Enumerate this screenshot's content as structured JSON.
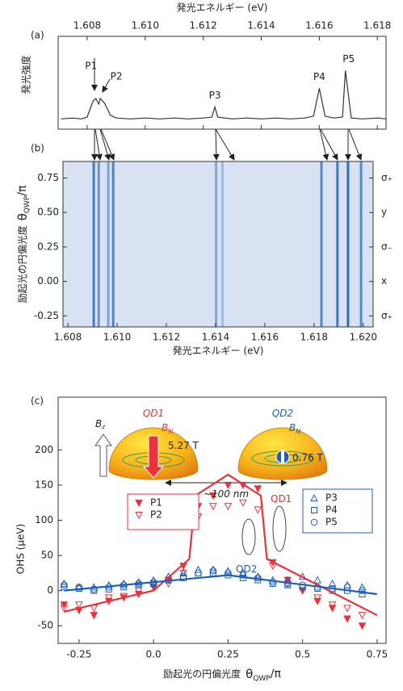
{
  "chart_data": [
    {
      "type": "line",
      "label": "(a)",
      "xlabel": "発光エネルギー (eV)",
      "ylabel": "発光強度",
      "xlim": [
        1.607,
        1.6183
      ],
      "xticks": [
        1.608,
        {
          "value": 1.61,
          "label": "1.610"
        },
        1.612,
        1.614,
        1.616,
        1.618
      ],
      "ylim": [
        0,
        100
      ],
      "x": [
        1.6071,
        1.6075,
        1.6078,
        1.608,
        1.6082,
        1.6083,
        1.6084,
        1.60845,
        1.6086,
        1.6088,
        1.609,
        1.6095,
        1.61,
        1.6105,
        1.611,
        1.6115,
        1.612,
        1.6123,
        1.6124,
        1.6125,
        1.613,
        1.6135,
        1.614,
        1.6145,
        1.615,
        1.6155,
        1.6158,
        1.616,
        1.6162,
        1.6165,
        1.6168,
        1.6169,
        1.6171,
        1.6175,
        1.618,
        1.6183
      ],
      "series": [
        {
          "color": "#333333",
          "values": [
            11,
            12,
            11,
            13,
            30,
            33,
            27,
            33,
            28,
            15,
            12,
            11,
            12,
            11,
            12,
            11,
            12,
            13,
            24,
            13,
            11,
            12,
            11,
            12,
            11,
            12,
            14,
            44,
            14,
            12,
            13,
            63,
            12,
            11,
            12,
            11
          ]
        }
      ],
      "peaks": [
        {
          "label": "P1",
          "x": 1.6083
        },
        {
          "label": "P2",
          "x": 1.60845
        },
        {
          "label": "P3",
          "x": 1.6124
        },
        {
          "label": "P4",
          "x": 1.616
        },
        {
          "label": "P5",
          "x": 1.6169
        }
      ]
    },
    {
      "type": "heatmap",
      "label": "(b)",
      "xlabel": "発光エネルギー (eV)",
      "ylabel": "励起光の円偏光度",
      "ylabel_symbol": {
        "base": "θ",
        "sub": "QWP",
        "tail": "/π"
      },
      "xlim": [
        1.6078,
        1.6204
      ],
      "xticks": [
        1.608,
        {
          "value": 1.61,
          "label": "1.610"
        },
        1.612,
        1.614,
        1.616,
        1.618,
        {
          "value": 1.62,
          "label": "1.620"
        }
      ],
      "ylim": [
        -0.33,
        0.87
      ],
      "yticks": [
        0.75,
        {
          "value": 0.5,
          "label": "0.50"
        },
        0.25,
        {
          "value": 0,
          "label": "0.00"
        },
        -0.25
      ],
      "y2ticks": [
        {
          "value": 0.75,
          "label": "σ₊"
        },
        {
          "value": 0.5,
          "label": "y"
        },
        {
          "value": 0.25,
          "label": "σ₋"
        },
        {
          "value": 0,
          "label": "x"
        },
        {
          "value": -0.25,
          "label": "σ₊"
        }
      ],
      "color": "#1f5fb5",
      "x": [
        1.60905,
        1.60925,
        1.60964,
        1.60984,
        1.61402,
        1.61428,
        1.6183,
        1.61895,
        1.61938,
        1.61991
      ],
      "values": [
        0.8,
        0.6,
        0.5,
        0.75,
        0.45,
        0.3,
        0.7,
        0.8,
        0.9,
        0.7
      ]
    },
    {
      "type": "scatter",
      "label": "(c)",
      "ylabel": "OHS (μeV)",
      "xlabel": "励起光の円偏光度",
      "xlabel_symbol": {
        "base": "θ",
        "sub": "QWP",
        "tail": "/π"
      },
      "xlim": [
        -0.32,
        0.78
      ],
      "xticks": [
        -0.25,
        {
          "value": 0,
          "label": "0.0"
        },
        0.25,
        0.5,
        0.75
      ],
      "ylim": [
        -75,
        275
      ],
      "yticks": [
        -50,
        0,
        50,
        100,
        150,
        200
      ],
      "x": [
        -0.3,
        -0.25,
        -0.2,
        -0.15,
        -0.1,
        -0.05,
        0,
        0.05,
        0.1,
        0.15,
        0.2,
        0.25,
        0.3,
        0.35,
        0.4,
        0.45,
        0.5,
        0.55,
        0.6,
        0.65,
        0.7
      ],
      "series": [
        {
          "name": "P1",
          "color": "#e8333c",
          "marker": "tri-down",
          "filled": true,
          "legend": "left",
          "values": [
            -20,
            -28,
            -35,
            -15,
            -10,
            -5,
            5,
            15,
            35,
            120,
            135,
            150,
            150,
            145,
            40,
            15,
            0,
            -15,
            -25,
            -40,
            -50
          ]
        },
        {
          "name": "P2",
          "color": "#e8333c",
          "marker": "tri-down",
          "filled": false,
          "legend": "left",
          "values": [
            -25,
            -20,
            -25,
            -10,
            -8,
            0,
            5,
            10,
            25,
            105,
            120,
            120,
            125,
            115,
            35,
            10,
            0,
            -10,
            -20,
            -25,
            -35
          ]
        },
        {
          "name": "P3",
          "color": "#1f5fb5",
          "marker": "tri-up",
          "filled": false,
          "legend": "right",
          "values": [
            10,
            5,
            5,
            8,
            10,
            12,
            15,
            20,
            25,
            30,
            30,
            28,
            25,
            20,
            15,
            15,
            20,
            15,
            10,
            8,
            5
          ]
        },
        {
          "name": "P4",
          "color": "#1f5fb5",
          "marker": "square",
          "filled": false,
          "legend": "right",
          "values": [
            5,
            3,
            0,
            2,
            5,
            8,
            10,
            15,
            18,
            22,
            25,
            22,
            18,
            15,
            10,
            8,
            5,
            3,
            0,
            0,
            -5
          ]
        },
        {
          "name": "P5",
          "color": "#1f5fb5",
          "marker": "circle",
          "filled": false,
          "legend": "right",
          "values": [
            8,
            5,
            2,
            5,
            8,
            10,
            12,
            15,
            20,
            25,
            28,
            25,
            22,
            18,
            12,
            10,
            8,
            5,
            3,
            5,
            0
          ]
        }
      ],
      "fits": [
        {
          "color": "#e8333c",
          "x": [
            -0.3,
            0,
            0.12,
            0.14,
            0.25,
            0.36,
            0.38,
            0.75
          ],
          "values": [
            -30,
            0,
            45,
            135,
            165,
            135,
            45,
            -35
          ]
        },
        {
          "color": "#1f5fb5",
          "x": [
            -0.3,
            0.25,
            0.75
          ],
          "values": [
            0,
            22,
            -5
          ]
        }
      ],
      "annotations": [
        {
          "text": "QD1",
          "color": "#e8333c"
        },
        {
          "text": "B",
          "sub": "N",
          "color": "#e8333c"
        },
        {
          "text": "5.27 T",
          "color": "#222222"
        },
        {
          "text": "QD2",
          "color": "#1f5fb5"
        },
        {
          "text": "B",
          "sub": "N",
          "color": "#1f5fb5"
        },
        {
          "text": "0.76 T",
          "color": "#222222"
        },
        {
          "text": "~100 nm",
          "color": "#222222"
        },
        {
          "text": "B",
          "sub": "z",
          "color": "#222222"
        },
        {
          "text": "QD1",
          "color": "#e8333c"
        },
        {
          "text": "QD2",
          "color": "#1f5fb5"
        }
      ]
    }
  ]
}
